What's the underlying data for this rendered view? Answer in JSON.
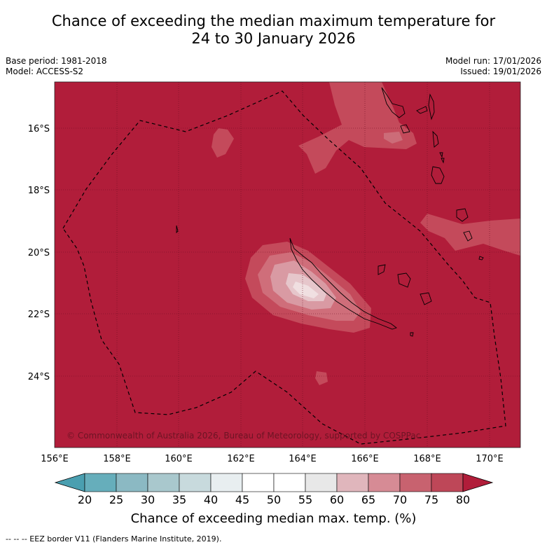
{
  "title_line1": "Chance of exceeding the median maximum temperature for",
  "title_line2": "24 to 30 January 2026",
  "meta_left": {
    "base_period": "Base period: 1981-2018",
    "model": "Model: ACCESS-S2"
  },
  "meta_right": {
    "model_run": "Model run: 17/01/2026",
    "issued": "Issued: 19/01/2026"
  },
  "map": {
    "lat_labels": [
      "16°S",
      "18°S",
      "20°S",
      "22°S",
      "24°S"
    ],
    "lon_labels": [
      "156°E",
      "158°E",
      "160°E",
      "162°E",
      "164°E",
      "166°E",
      "168°E",
      "170°E"
    ],
    "copyright": "© Commonwealth of Australia 2026, Bureau of Meteorology, supported by COSPPac",
    "background_color": "#b11d3a",
    "land_outline_color": "#000000",
    "eez_border_style": "dashed"
  },
  "colorbar": {
    "ticks": [
      "20",
      "25",
      "30",
      "35",
      "40",
      "45",
      "50",
      "55",
      "60",
      "65",
      "70",
      "75",
      "80"
    ],
    "colors": [
      "#66aebb",
      "#8bb9c3",
      "#a9c8cd",
      "#c8dadd",
      "#e8eef0",
      "#ffffff",
      "#ffffff",
      "#e8e8e8",
      "#e0b6bc",
      "#d68b95",
      "#c8626f",
      "#be4758"
    ],
    "low_extend_color": "#4a9fb0",
    "high_extend_color": "#b11d3a",
    "title": "Chance of exceeding median max. temp. (%)"
  },
  "footnote": "--  --  -- EEZ border V11 (Flanders Marine Institute, 2019)."
}
